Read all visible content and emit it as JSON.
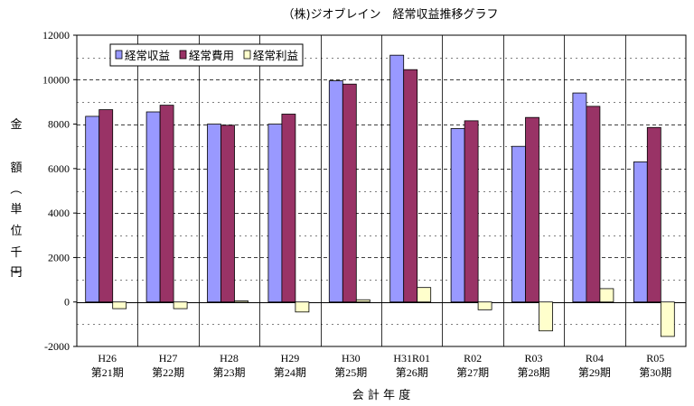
{
  "chart_data": {
    "type": "bar",
    "title": "（株)ジオブレイン　経常収益推移グラフ",
    "xlabel": "会 計 年 度",
    "ylabel": "金額（単位千円）",
    "ylim": [
      -2000,
      12000
    ],
    "yticks": [
      -2000,
      0,
      2000,
      4000,
      6000,
      8000,
      10000,
      12000
    ],
    "grid": true,
    "legend_position": "top-left",
    "categories": [
      [
        "H26",
        "第21期"
      ],
      [
        "H27",
        "第22期"
      ],
      [
        "H28",
        "第23期"
      ],
      [
        "H29",
        "第24期"
      ],
      [
        "H30",
        "第25期"
      ],
      [
        "H31R01",
        "第26期"
      ],
      [
        "R02",
        "第27期"
      ],
      [
        "R03",
        "第28期"
      ],
      [
        "R04",
        "第29期"
      ],
      [
        "R05",
        "第30期"
      ]
    ],
    "series": [
      {
        "name": "経常収益",
        "color": "#9999FF",
        "values": [
          8350,
          8550,
          8000,
          8000,
          9950,
          11100,
          7800,
          7000,
          9400,
          6300
        ]
      },
      {
        "name": "経常費用",
        "color": "#993366",
        "values": [
          8650,
          8850,
          7950,
          8450,
          9800,
          10450,
          8150,
          8300,
          8800,
          7850
        ]
      },
      {
        "name": "経常利益",
        "color": "#FFFFCC",
        "values": [
          -300,
          -300,
          50,
          -450,
          100,
          650,
          -350,
          -1300,
          600,
          -1550
        ]
      }
    ]
  }
}
